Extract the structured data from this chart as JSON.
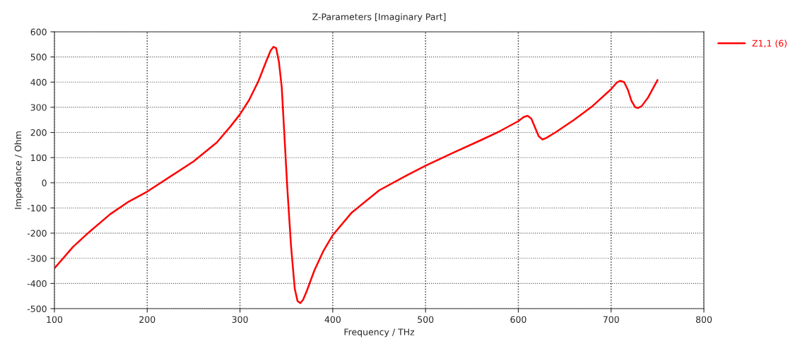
{
  "chart_data": {
    "type": "line",
    "title": "Z-Parameters [Imaginary Part]",
    "xlabel": "Frequency / THz",
    "ylabel": "Impedance / Ohm",
    "xlim": [
      100,
      800
    ],
    "xticks": [
      100,
      200,
      300,
      400,
      500,
      600,
      700,
      800
    ],
    "ylim": [
      -500,
      600
    ],
    "yticks": [
      -500,
      -400,
      -300,
      -200,
      -100,
      0,
      100,
      200,
      300,
      400,
      500,
      600
    ],
    "grid": true,
    "legend": "top right",
    "line_style": "solid",
    "marker": "none",
    "series": [
      {
        "name": "Z1,1 (6)",
        "color": "#ff0000",
        "x": [
          100,
          120,
          138,
          160,
          180,
          200,
          225,
          250,
          275,
          290,
          300,
          310,
          320,
          328,
          333,
          336,
          339,
          342,
          345,
          348,
          351,
          355,
          359,
          362,
          365,
          368,
          372,
          380,
          390,
          400,
          420,
          450,
          480,
          500,
          530,
          560,
          580,
          600,
          606,
          610,
          614,
          618,
          622,
          626,
          630,
          640,
          660,
          680,
          700,
          706,
          710,
          714,
          718,
          722,
          726,
          729,
          733,
          740,
          750
        ],
        "values": [
          -340,
          -255,
          -194,
          -125,
          -75,
          -35,
          25,
          85,
          160,
          225,
          272,
          330,
          405,
          480,
          525,
          540,
          535,
          480,
          380,
          180,
          -20,
          -250,
          -420,
          -470,
          -478,
          -465,
          -430,
          -350,
          -270,
          -208,
          -120,
          -30,
          30,
          68,
          120,
          170,
          205,
          245,
          262,
          266,
          255,
          220,
          185,
          172,
          178,
          200,
          250,
          305,
          372,
          398,
          405,
          400,
          370,
          325,
          300,
          297,
          305,
          340,
          408
        ]
      }
    ]
  }
}
